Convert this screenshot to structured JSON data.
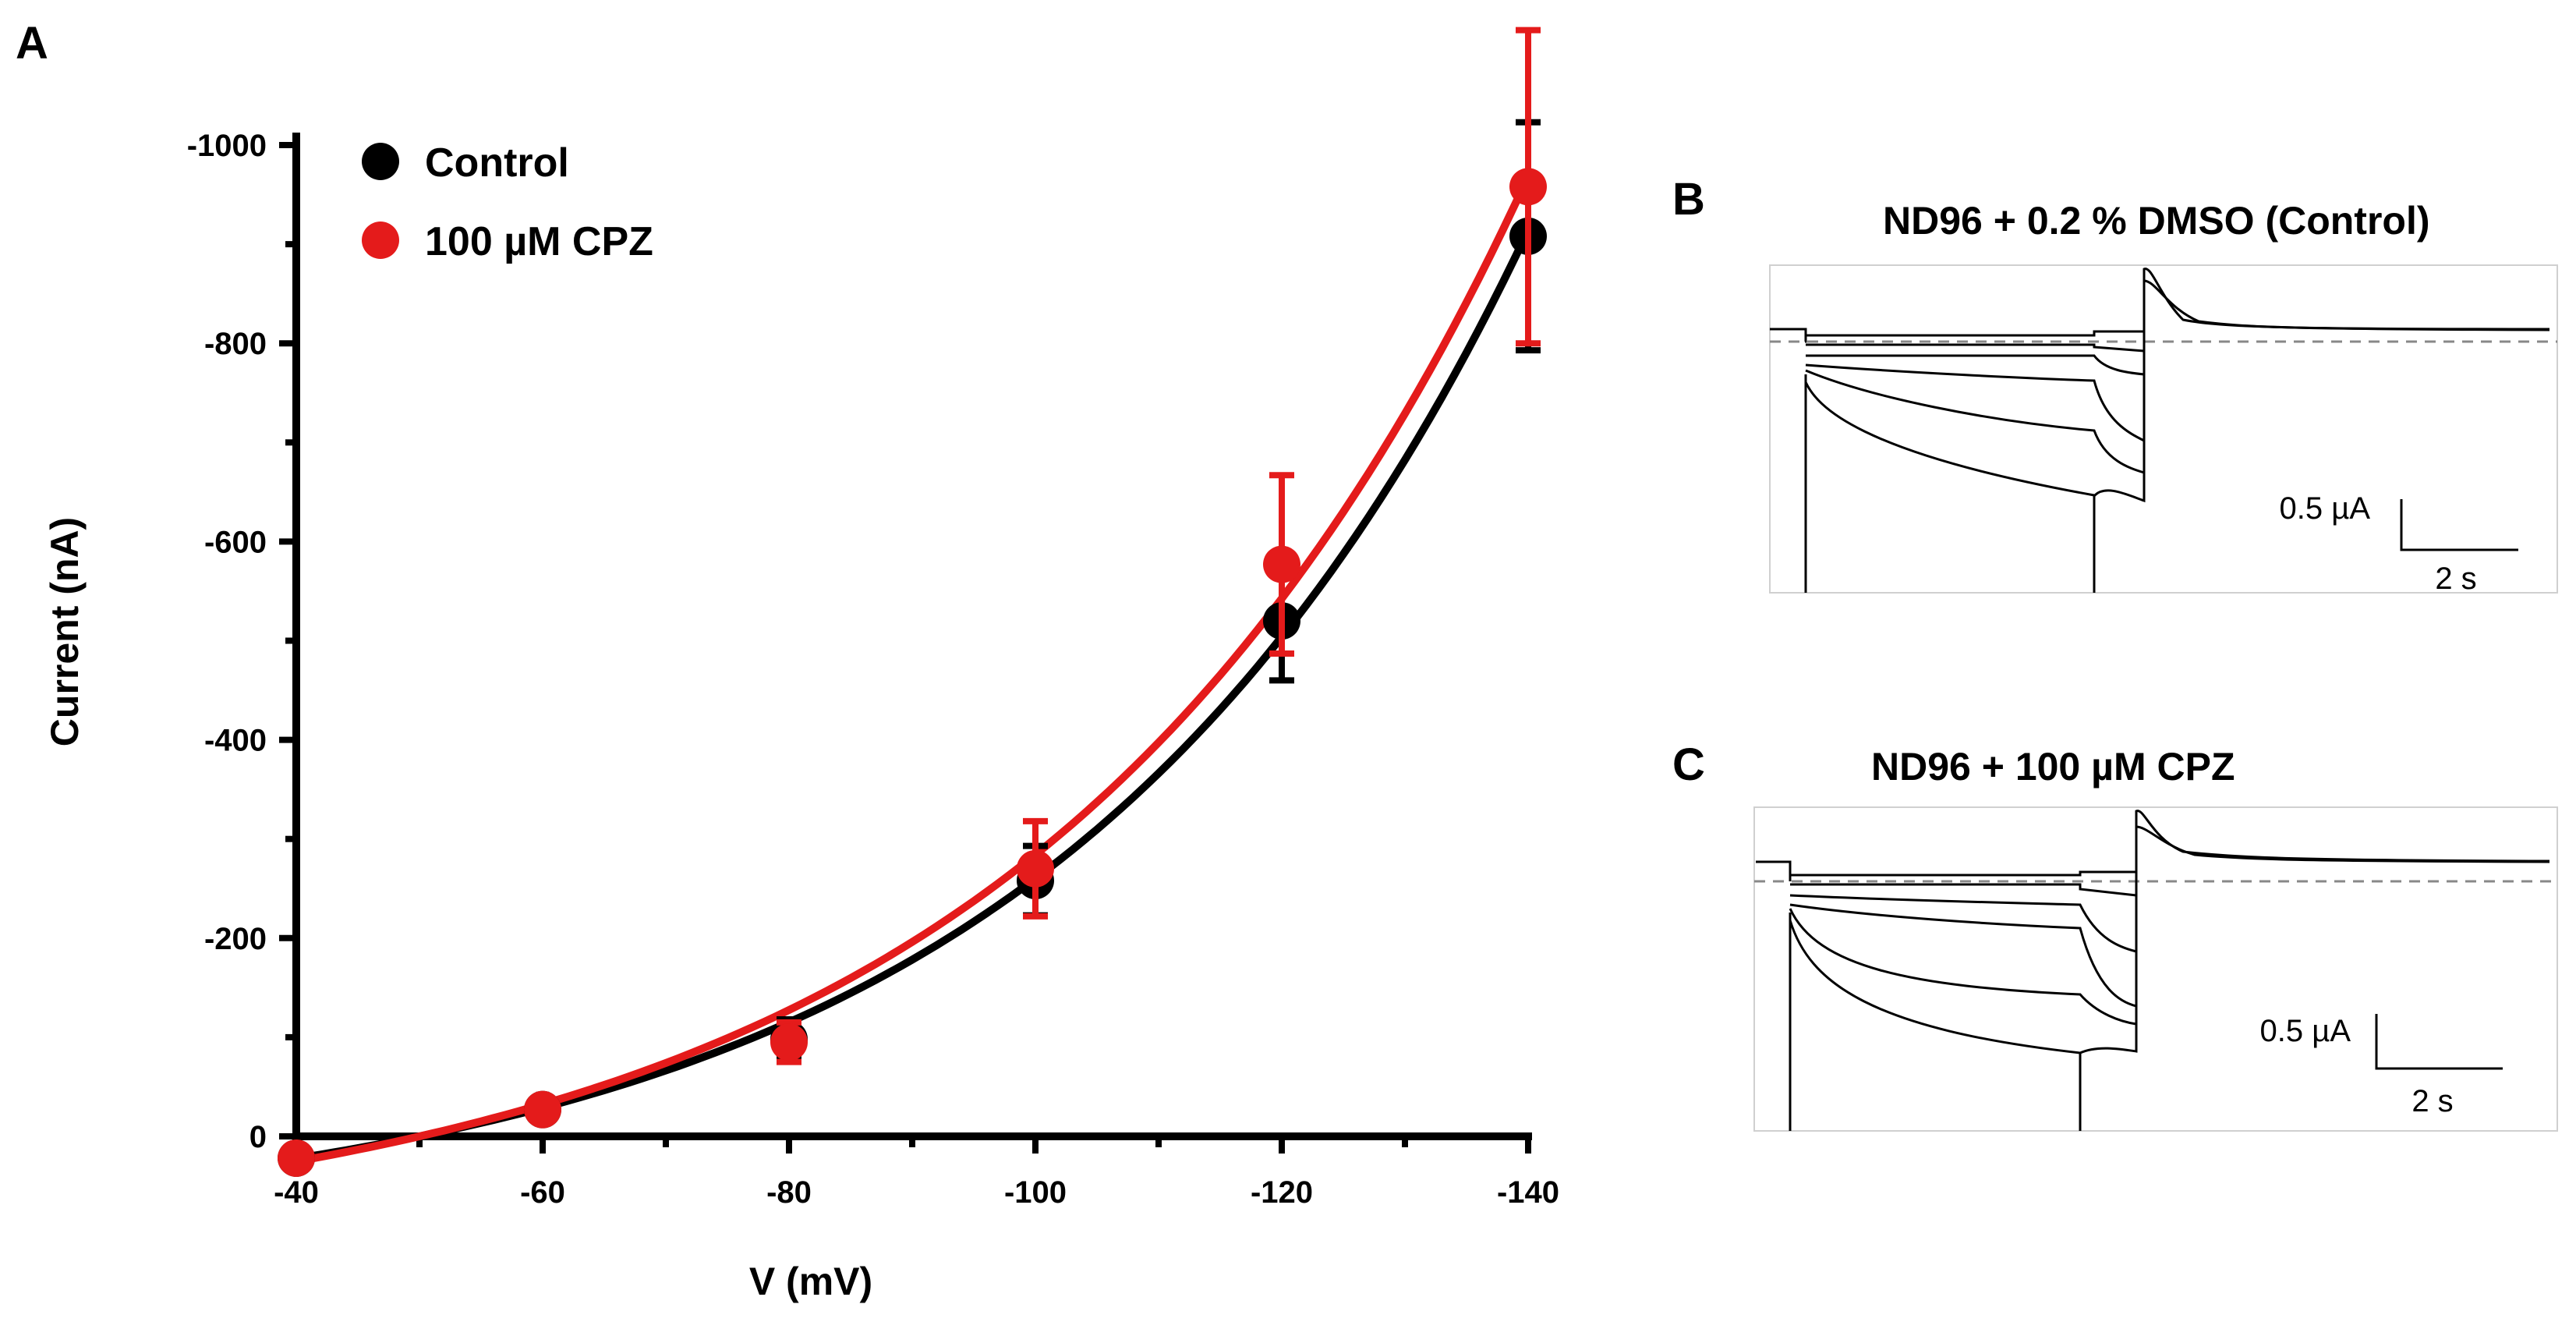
{
  "chart_data": [
    {
      "panel": "A",
      "type": "scatter",
      "xlabel": "V (mV)",
      "ylabel": "Current (nA)",
      "xticks": [
        "-40",
        "-60",
        "-80",
        "-100",
        "-120",
        "-140"
      ],
      "yticks": [
        "0",
        "-200",
        "-400",
        "-600",
        "-800",
        "-1000"
      ],
      "xlim": [
        -40,
        -140
      ],
      "ylim": [
        0,
        -1000
      ],
      "legend": "top-left",
      "series": [
        {
          "name": "Control",
          "color": "#000000",
          "x": [
            -40,
            -60,
            -80,
            -100,
            -120,
            -140
          ],
          "y": [
            22,
            -27,
            -98,
            -258,
            -520,
            -908
          ],
          "err": [
            5,
            10,
            20,
            35,
            60,
            115
          ],
          "fit": "exponential"
        },
        {
          "name": "100 µM CPZ",
          "color": "#e41b1b",
          "x": [
            -40,
            -60,
            -80,
            -100,
            -120,
            -140
          ],
          "y": [
            22,
            -27,
            -95,
            -270,
            -577,
            -958
          ],
          "err": [
            5,
            10,
            20,
            48,
            90,
            158
          ],
          "fit": "exponential"
        }
      ]
    },
    {
      "panel": "B",
      "type": "line",
      "title": "ND96 + 0.2 % DMSO (Control)",
      "scale": {
        "current": "0.5 µA",
        "time": "2 s"
      },
      "traces": 6
    },
    {
      "panel": "C",
      "type": "line",
      "title": "ND96 + 100 µM CPZ",
      "scale": {
        "current": "0.5 µA",
        "time": "2 s"
      },
      "traces": 6
    }
  ],
  "labels": {
    "panel_a": "A",
    "panel_b": "B",
    "panel_c": "C"
  }
}
